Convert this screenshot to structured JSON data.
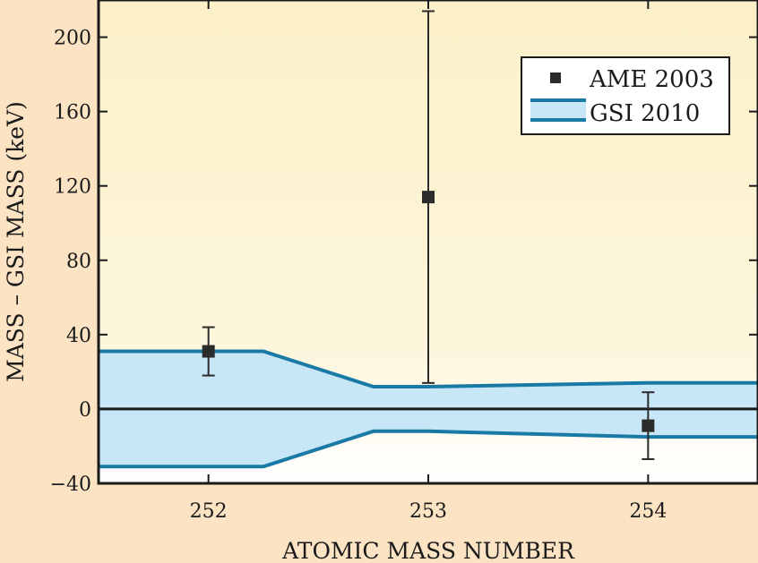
{
  "chart_data": {
    "type": "scatter",
    "xlabel": "ATOMIC MASS NUMBER",
    "ylabel": "MASS – GSI MASS (keV)",
    "xlim": [
      251.5,
      254.5
    ],
    "ylim": [
      -40,
      220
    ],
    "x_ticks": [
      252,
      253,
      254
    ],
    "y_ticks": [
      -40,
      0,
      40,
      80,
      120,
      160,
      200
    ],
    "grid": false,
    "legend_position": "top-right",
    "series": [
      {
        "name": "AME 2003",
        "kind": "points-with-errorbars",
        "points": [
          {
            "x": 252,
            "y": 31,
            "err_low": 13,
            "err_high": 13
          },
          {
            "x": 253,
            "y": 114,
            "err_low": 100,
            "err_high": 100
          },
          {
            "x": 254,
            "y": -9,
            "err_low": 18,
            "err_high": 18
          }
        ]
      },
      {
        "name": "GSI 2010",
        "kind": "uncertainty-band",
        "x": [
          251.5,
          252.25,
          252.75,
          253.0,
          254.0,
          254.5
        ],
        "upper": [
          31,
          31,
          12,
          12,
          14,
          14
        ],
        "lower": [
          -31,
          -31,
          -12,
          -12,
          -15,
          -15
        ]
      }
    ],
    "colors": {
      "page_background": "#fbe3c4",
      "plot_background_top": "#fbf0c7",
      "plot_background_bottom": "#ffffff",
      "band_fill": "#c8e7f6",
      "band_line": "#1a7aa6",
      "marker": "#2b2b2b"
    }
  }
}
